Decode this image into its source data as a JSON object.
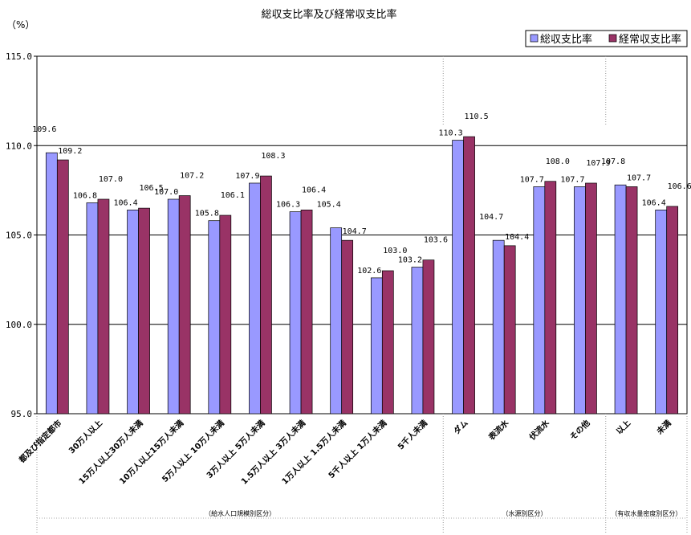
{
  "chart_data": {
    "type": "bar",
    "title": "総収支比率及び経常収支比率",
    "unit_label": "（%）",
    "ylim": [
      95.0,
      115.0
    ],
    "yticks": [
      "95.0",
      "100.0",
      "105.0",
      "110.0",
      "115.0"
    ],
    "grid": true,
    "legend_position": "top-right",
    "categories": [
      "都及び指定都市",
      "30万人以上",
      "15万人以上30万人未満",
      "10万人以上15万人未満",
      "5万人以上 10万人未満",
      "3万人以上 5万人未満",
      "1.5万人以上 3万人未満",
      "1万人以上 1.5万人未満",
      "5千人以上 1万人未満",
      "5千人未満",
      "ダム",
      "表流水",
      "伏流水",
      "その他",
      "以上",
      "未満"
    ],
    "series": [
      {
        "name": "総収支比率",
        "color": "#9999ff",
        "values": [
          109.6,
          106.8,
          106.4,
          107.0,
          105.8,
          107.9,
          106.3,
          105.4,
          102.6,
          103.2,
          110.3,
          104.7,
          107.7,
          107.7,
          107.8,
          106.4
        ]
      },
      {
        "name": "経常収支比率",
        "color": "#993366",
        "values": [
          109.2,
          107.0,
          106.5,
          107.2,
          106.1,
          108.3,
          106.4,
          104.7,
          103.0,
          103.6,
          110.5,
          104.4,
          108.0,
          107.9,
          107.7,
          106.6
        ]
      }
    ],
    "groups": [
      {
        "label": "（給水人口規模別区分）",
        "start": 0,
        "end": 9
      },
      {
        "label": "（水源別区分）",
        "start": 10,
        "end": 13
      },
      {
        "label": "（有収水量密度別区分）",
        "start": 14,
        "end": 15
      }
    ]
  }
}
